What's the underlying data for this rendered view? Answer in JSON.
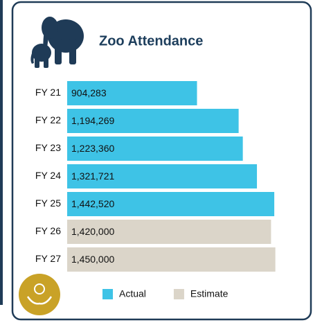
{
  "chart_data": {
    "type": "bar",
    "orientation": "horizontal",
    "title": "Zoo Attendance",
    "categories": [
      "FY 21",
      "FY 22",
      "FY 23",
      "FY 24",
      "FY 25",
      "FY 26",
      "FY 27"
    ],
    "series": [
      {
        "name": "Actual",
        "color": "#3ec3e6",
        "values": [
          904283,
          1194269,
          1223360,
          1321721,
          1442520,
          null,
          null
        ],
        "value_labels": [
          "904,283",
          "1,194,269",
          "1,223,360",
          "1,321,721",
          "1,442,520",
          null,
          null
        ]
      },
      {
        "name": "Estimate",
        "color": "#dbd5c9",
        "values": [
          null,
          null,
          null,
          null,
          null,
          1420000,
          1450000
        ],
        "value_labels": [
          null,
          null,
          null,
          null,
          null,
          "1,420,000",
          "1,450,000"
        ]
      }
    ],
    "xlim": [
      0,
      1500000
    ],
    "legend": "bottom"
  }
}
